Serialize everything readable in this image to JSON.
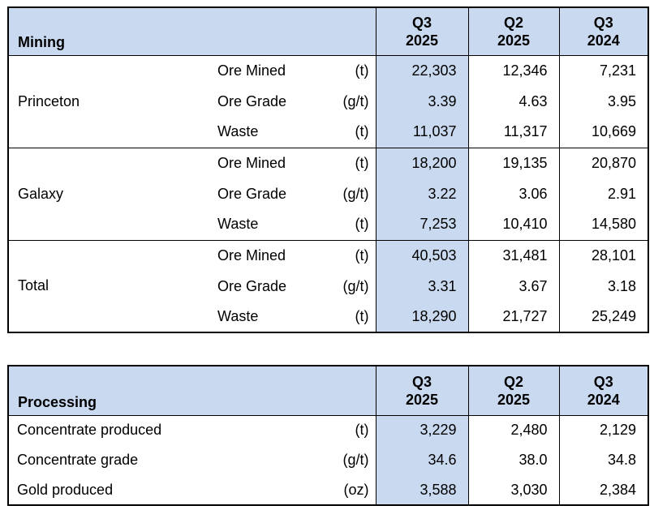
{
  "palette": {
    "header_bg": "#C9D9F0",
    "highlight_bg": "#C9D9F0",
    "grid": "#000000",
    "text": "#000000",
    "page_bg": "#FFFFFF"
  },
  "period_headers": [
    {
      "quarter": "Q3",
      "year": "2025",
      "highlighted": true
    },
    {
      "quarter": "Q2",
      "year": "2025",
      "highlighted": false
    },
    {
      "quarter": "Q3",
      "year": "2024",
      "highlighted": false
    }
  ],
  "mining_table": {
    "title": "Mining",
    "groups": [
      {
        "label": "Princeton",
        "rows": [
          {
            "metric": "Ore Mined",
            "unit": "(t)",
            "values": [
              "22,303",
              "12,346",
              "7,231"
            ]
          },
          {
            "metric": "Ore Grade",
            "unit": "(g/t)",
            "values": [
              "3.39",
              "4.63",
              "3.95"
            ]
          },
          {
            "metric": "Waste",
            "unit": "(t)",
            "values": [
              "11,037",
              "11,317",
              "10,669"
            ]
          }
        ]
      },
      {
        "label": "Galaxy",
        "rows": [
          {
            "metric": "Ore Mined",
            "unit": "(t)",
            "values": [
              "18,200",
              "19,135",
              "20,870"
            ]
          },
          {
            "metric": "Ore Grade",
            "unit": "(g/t)",
            "values": [
              "3.22",
              "3.06",
              "2.91"
            ]
          },
          {
            "metric": "Waste",
            "unit": "(t)",
            "values": [
              "7,253",
              "10,410",
              "14,580"
            ]
          }
        ]
      },
      {
        "label": "Total",
        "rows": [
          {
            "metric": "Ore Mined",
            "unit": "(t)",
            "values": [
              "40,503",
              "31,481",
              "28,101"
            ]
          },
          {
            "metric": "Ore Grade",
            "unit": "(g/t)",
            "values": [
              "3.31",
              "3.67",
              "3.18"
            ]
          },
          {
            "metric": "Waste",
            "unit": "(t)",
            "values": [
              "18,290",
              "21,727",
              "25,249"
            ]
          }
        ]
      }
    ]
  },
  "processing_table": {
    "title": "Processing",
    "rows": [
      {
        "label": "Concentrate produced",
        "unit": "(t)",
        "values": [
          "3,229",
          "2,480",
          "2,129"
        ]
      },
      {
        "label": "Concentrate grade",
        "unit": "(g/t)",
        "values": [
          "34.6",
          "38.0",
          "34.8"
        ]
      },
      {
        "label": "Gold produced",
        "unit": "(oz)",
        "values": [
          "3,588",
          "3,030",
          "2,384"
        ]
      }
    ]
  }
}
